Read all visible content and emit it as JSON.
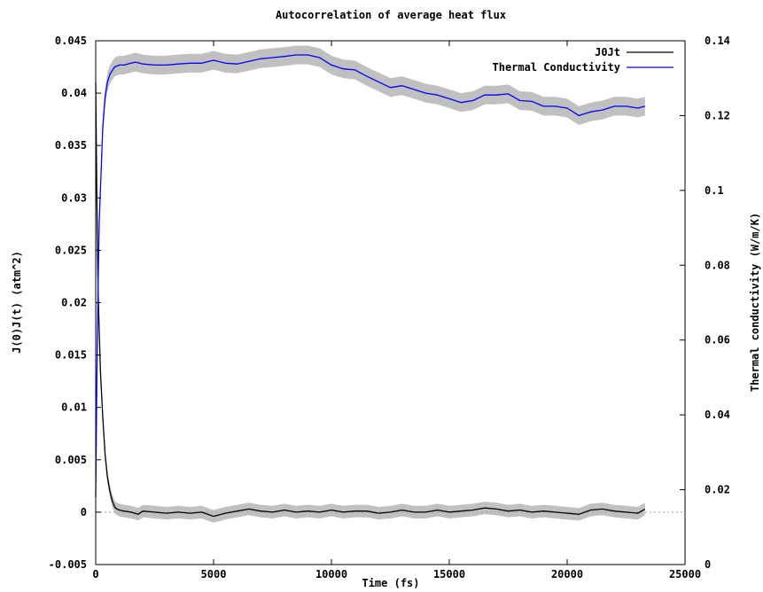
{
  "chart_data": {
    "type": "line",
    "title": "Autocorrelation of average heat flux",
    "xlabel": "Time (fs)",
    "ylabel": "J(0)J(t) (atm^2)",
    "y2label": "Thermal conductivity (W/m/K)",
    "xlim": [
      0,
      25000
    ],
    "ylim": [
      -0.005,
      0.045
    ],
    "y2lim": [
      0,
      0.14
    ],
    "x_ticks": [
      "0",
      "5000",
      "10000",
      "15000",
      "20000",
      "25000"
    ],
    "y_ticks": [
      "-0.005",
      "0",
      "0.005",
      "0.01",
      "0.015",
      "0.02",
      "0.025",
      "0.03",
      "0.035",
      "0.04",
      "0.045"
    ],
    "y2_ticks": [
      "0",
      "0.02",
      "0.04",
      "0.06",
      "0.08",
      "0.1",
      "0.12",
      "0.14"
    ],
    "grid": false,
    "zero_line": true,
    "legend_position": "top-right",
    "series": [
      {
        "name": "J0Jt",
        "axis": "y",
        "color": "#000000",
        "error_band": 0.0006,
        "x": [
          0,
          50,
          100,
          200,
          300,
          400,
          500,
          600,
          700,
          800,
          900,
          1000,
          1200,
          1500,
          1800,
          2000,
          2500,
          3000,
          3500,
          4000,
          4500,
          5000,
          5500,
          6000,
          6500,
          7000,
          7500,
          8000,
          8500,
          9000,
          9500,
          10000,
          10500,
          11000,
          11500,
          12000,
          12500,
          13000,
          13500,
          14000,
          14500,
          15000,
          15500,
          16000,
          16500,
          17000,
          17500,
          18000,
          18500,
          19000,
          19500,
          20000,
          20500,
          21000,
          21500,
          22000,
          22500,
          23000,
          23300
        ],
        "values": [
          0.041,
          0.03,
          0.021,
          0.0135,
          0.009,
          0.0055,
          0.0033,
          0.002,
          0.0011,
          0.0005,
          0.0003,
          0.0002,
          0.0001,
          0.0,
          -0.0002,
          0.0001,
          0.0,
          -0.0001,
          0.0,
          -0.0001,
          0.0,
          -0.0004,
          -0.0001,
          0.0001,
          0.0003,
          0.0001,
          0.0,
          0.0002,
          0.0,
          0.0001,
          0.0,
          0.0002,
          0.0,
          0.0001,
          0.0001,
          -0.0001,
          0.0,
          0.0002,
          0.0,
          0.0,
          0.0002,
          0.0,
          0.0001,
          0.0002,
          0.0004,
          0.0003,
          0.0001,
          0.0002,
          0.0,
          0.0001,
          0.0,
          -0.0001,
          -0.0002,
          0.0002,
          0.0003,
          0.0001,
          0.0,
          -0.0001,
          0.0003
        ]
      },
      {
        "name": "Thermal Conductivity",
        "axis": "y2",
        "color": "#0000ff",
        "error_band": 0.0025,
        "x": [
          0,
          50,
          100,
          150,
          200,
          300,
          400,
          500,
          600,
          700,
          800,
          1000,
          1200,
          1500,
          1700,
          2000,
          2500,
          3000,
          3500,
          4000,
          4500,
          5000,
          5500,
          6000,
          6500,
          7000,
          7500,
          8000,
          8500,
          9000,
          9500,
          10000,
          10500,
          11000,
          11500,
          12000,
          12500,
          13000,
          13500,
          14000,
          14500,
          15000,
          15500,
          16000,
          16500,
          17000,
          17500,
          18000,
          18500,
          19000,
          19500,
          20000,
          20500,
          21000,
          21500,
          22000,
          22500,
          23000,
          23300
        ],
        "values": [
          0.018,
          0.05,
          0.075,
          0.092,
          0.1,
          0.117,
          0.125,
          0.129,
          0.131,
          0.132,
          0.133,
          0.1335,
          0.1335,
          0.134,
          0.1343,
          0.1338,
          0.1335,
          0.1335,
          0.1338,
          0.134,
          0.134,
          0.1348,
          0.134,
          0.1338,
          0.1345,
          0.1352,
          0.1355,
          0.1358,
          0.1362,
          0.1362,
          0.1355,
          0.1335,
          0.1325,
          0.1322,
          0.1305,
          0.129,
          0.1275,
          0.128,
          0.127,
          0.126,
          0.1255,
          0.1245,
          0.1235,
          0.124,
          0.1255,
          0.1255,
          0.1258,
          0.124,
          0.1238,
          0.1225,
          0.1225,
          0.122,
          0.12,
          0.121,
          0.1215,
          0.1225,
          0.1225,
          0.122,
          0.1225
        ]
      }
    ]
  }
}
